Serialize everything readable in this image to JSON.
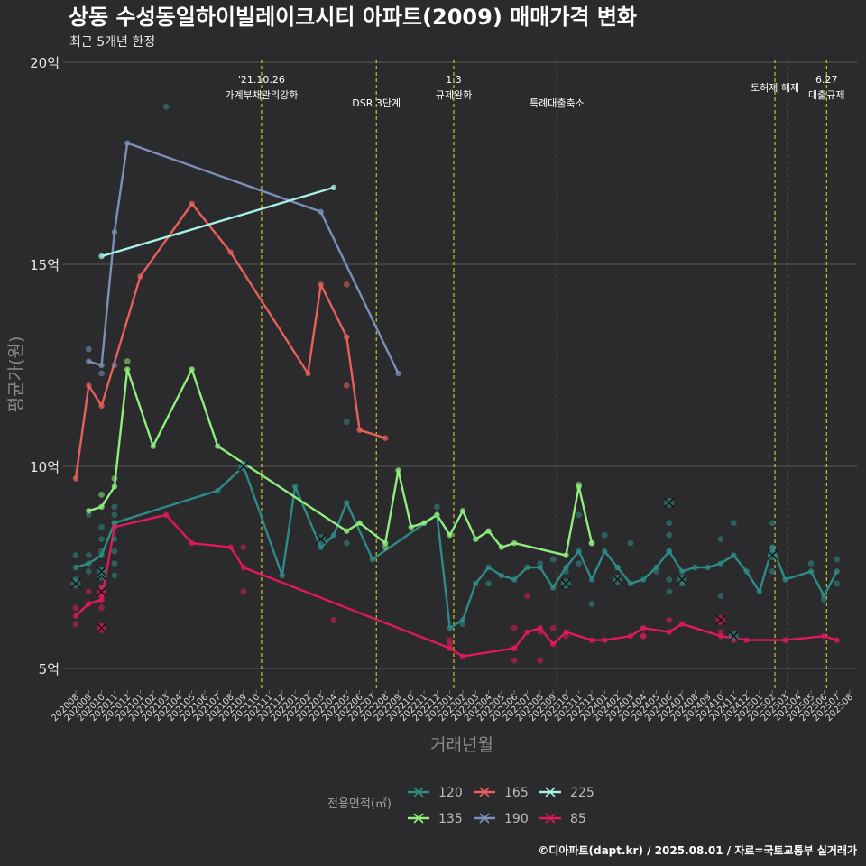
{
  "chart_data": {
    "type": "line",
    "title": "상동 수성동일하이빌레이크시티 아파트(2009) 매매가격 변화",
    "subtitle": "최근 5개년 한정",
    "xlabel": "거래년월",
    "ylabel": "평균가(원)",
    "caption": "©디아파트(dapt.kr) / 2025.08.01 / 자료=국토교통부 실거래가",
    "ylim": [
      4.3,
      20.1
    ],
    "yticks": [
      {
        "value": 5,
        "label": "5억"
      },
      {
        "value": 10,
        "label": "10억"
      },
      {
        "value": 15,
        "label": "15억"
      },
      {
        "value": 20,
        "label": "20억"
      }
    ],
    "x_categories": [
      "202008",
      "202009",
      "202010",
      "202011",
      "202012",
      "202101",
      "202102",
      "202103",
      "202104",
      "202105",
      "202106",
      "202107",
      "202108",
      "202109",
      "202110",
      "202111",
      "202112",
      "202201",
      "202202",
      "202203",
      "202204",
      "202205",
      "202206",
      "202207",
      "202208",
      "202209",
      "202210",
      "202211",
      "202212",
      "202301",
      "202302",
      "202303",
      "202304",
      "202305",
      "202306",
      "202307",
      "202308",
      "202309",
      "202310",
      "202311",
      "202312",
      "202401",
      "202402",
      "202403",
      "202404",
      "202405",
      "202406",
      "202407",
      "202408",
      "202409",
      "202410",
      "202411",
      "202412",
      "202501",
      "202502",
      "202503",
      "202504",
      "202505",
      "202506",
      "202507",
      "202508"
    ],
    "events": [
      {
        "x": 14.4,
        "lines": [
          "'21.10.26",
          "가계부채관리강화"
        ]
      },
      {
        "x": 23.3,
        "lines": [
          "DSR 3단계"
        ]
      },
      {
        "x": 29.3,
        "lines": [
          "1.3",
          "규제완화"
        ]
      },
      {
        "x": 37.3,
        "lines": [
          "특례대출축소"
        ]
      },
      {
        "x": 54.2,
        "lines": [
          "토허제 해제"
        ]
      },
      {
        "x": 55.2,
        "lines": []
      },
      {
        "x": 58.2,
        "lines": [
          "6.27",
          "대출규제"
        ]
      }
    ],
    "legend": {
      "title": "전용면적(㎡)",
      "position": "bottom"
    },
    "series": [
      {
        "name": "120",
        "color": "#2e8b86",
        "points": [
          [
            0,
            7.5
          ],
          [
            1,
            7.6
          ],
          [
            2,
            7.8
          ],
          [
            3,
            8.6
          ],
          [
            11,
            9.4
          ],
          [
            13,
            10.0
          ],
          [
            16,
            7.3
          ],
          [
            17,
            9.5
          ],
          [
            19,
            8.0
          ],
          [
            20,
            8.3
          ],
          [
            21,
            9.1
          ],
          [
            23,
            7.7
          ],
          [
            28,
            8.8
          ],
          [
            29,
            6.0
          ],
          [
            30,
            6.2
          ],
          [
            31,
            7.1
          ],
          [
            32,
            7.5
          ],
          [
            33,
            7.3
          ],
          [
            34,
            7.2
          ],
          [
            35,
            7.5
          ],
          [
            36,
            7.5
          ],
          [
            37,
            7.0
          ],
          [
            38,
            7.5
          ],
          [
            39,
            7.9
          ],
          [
            40,
            7.2
          ],
          [
            41,
            7.9
          ],
          [
            42,
            7.5
          ],
          [
            43,
            7.1
          ],
          [
            44,
            7.2
          ],
          [
            45,
            7.5
          ],
          [
            46,
            7.9
          ],
          [
            47,
            7.4
          ],
          [
            48,
            7.5
          ],
          [
            49,
            7.5
          ],
          [
            50,
            7.6
          ],
          [
            51,
            7.8
          ],
          [
            52,
            7.4
          ],
          [
            53,
            6.9
          ],
          [
            54,
            8.0
          ],
          [
            55,
            7.2
          ],
          [
            57,
            7.4
          ],
          [
            58,
            6.8
          ],
          [
            59,
            7.4
          ]
        ],
        "dots": [
          [
            0,
            7.8
          ],
          [
            0,
            7.2
          ],
          [
            1,
            8.8
          ],
          [
            1,
            7.4
          ],
          [
            1,
            7.8
          ],
          [
            2,
            8.5
          ],
          [
            2,
            7.9
          ],
          [
            2,
            7.4
          ],
          [
            2,
            7.0
          ],
          [
            2,
            8.2
          ],
          [
            3,
            9.0
          ],
          [
            3,
            8.8
          ],
          [
            3,
            8.6
          ],
          [
            3,
            8.2
          ],
          [
            3,
            7.9
          ],
          [
            3,
            7.6
          ],
          [
            3,
            7.3
          ],
          [
            7,
            18.9
          ],
          [
            21,
            8.1
          ],
          [
            21,
            11.1
          ],
          [
            28,
            9.0
          ],
          [
            30,
            6.1
          ],
          [
            31,
            8.2
          ],
          [
            32,
            7.1
          ],
          [
            36,
            7.6
          ],
          [
            37,
            7.7
          ],
          [
            38,
            7.4
          ],
          [
            39,
            8.8
          ],
          [
            39,
            7.6
          ],
          [
            40,
            6.6
          ],
          [
            41,
            8.3
          ],
          [
            42,
            7.5
          ],
          [
            43,
            8.1
          ],
          [
            45,
            7.4
          ],
          [
            46,
            8.6
          ],
          [
            46,
            8.3
          ],
          [
            46,
            7.9
          ],
          [
            46,
            7.2
          ],
          [
            46,
            6.9
          ],
          [
            47,
            7.1
          ],
          [
            50,
            8.2
          ],
          [
            50,
            6.8
          ],
          [
            51,
            8.6
          ],
          [
            54,
            8.6
          ],
          [
            54,
            7.4
          ],
          [
            57,
            7.6
          ],
          [
            58,
            6.7
          ],
          [
            59,
            7.7
          ],
          [
            59,
            7.1
          ]
        ]
      },
      {
        "name": "135",
        "color": "#90ee7e",
        "points": [
          [
            1,
            8.9
          ],
          [
            2,
            9.0
          ],
          [
            3,
            9.5
          ],
          [
            4,
            12.4
          ],
          [
            6,
            10.5
          ],
          [
            9,
            12.4
          ],
          [
            11,
            10.5
          ],
          [
            21,
            8.4
          ],
          [
            22,
            8.6
          ],
          [
            24,
            8.1
          ],
          [
            25,
            9.9
          ],
          [
            26,
            8.5
          ],
          [
            27,
            8.6
          ],
          [
            28,
            8.8
          ],
          [
            29,
            8.3
          ],
          [
            30,
            8.9
          ],
          [
            31,
            8.2
          ],
          [
            32,
            8.4
          ],
          [
            33,
            8.0
          ],
          [
            34,
            8.1
          ],
          [
            38,
            7.8
          ],
          [
            39,
            9.5
          ],
          [
            40,
            8.1
          ]
        ],
        "dots": [
          [
            2,
            9.3
          ],
          [
            3,
            9.7
          ],
          [
            4,
            12.6
          ],
          [
            24,
            8.0
          ],
          [
            39,
            9.55
          ],
          [
            40,
            8.1
          ]
        ]
      },
      {
        "name": "165",
        "color": "#e8605b",
        "points": [
          [
            0,
            9.7
          ],
          [
            1,
            12.0
          ],
          [
            2,
            11.5
          ],
          [
            5,
            14.7
          ],
          [
            9,
            16.5
          ],
          [
            12,
            15.3
          ],
          [
            18,
            12.3
          ],
          [
            19,
            14.5
          ],
          [
            21,
            13.2
          ],
          [
            22,
            10.9
          ],
          [
            24,
            10.7
          ]
        ],
        "dots": [
          [
            21,
            14.5
          ],
          [
            21,
            12.0
          ]
        ]
      },
      {
        "name": "190",
        "color": "#7b90b8",
        "points": [
          [
            1,
            12.6
          ],
          [
            2,
            12.5
          ],
          [
            3,
            15.8
          ],
          [
            4,
            18.0
          ],
          [
            19,
            16.3
          ],
          [
            25,
            12.3
          ]
        ],
        "dots": [
          [
            1,
            12.9
          ],
          [
            2,
            12.3
          ],
          [
            3,
            12.5
          ]
        ]
      },
      {
        "name": "225",
        "color": "#aaf0e8",
        "points": [
          [
            2,
            15.2
          ],
          [
            20,
            16.9
          ]
        ],
        "dots": []
      },
      {
        "name": "85",
        "color": "#e0195e",
        "points": [
          [
            0,
            6.3
          ],
          [
            1,
            6.6
          ],
          [
            2,
            6.7
          ],
          [
            3,
            8.5
          ],
          [
            7,
            8.8
          ],
          [
            9,
            8.1
          ],
          [
            12,
            8.0
          ],
          [
            13,
            7.5
          ],
          [
            29,
            5.5
          ],
          [
            30,
            5.3
          ],
          [
            34,
            5.5
          ],
          [
            35,
            5.9
          ],
          [
            36,
            6.0
          ],
          [
            37,
            5.6
          ],
          [
            38,
            5.9
          ],
          [
            40,
            5.7
          ],
          [
            41,
            5.7
          ],
          [
            43,
            5.8
          ],
          [
            44,
            6.0
          ],
          [
            46,
            5.9
          ],
          [
            47,
            6.1
          ],
          [
            50,
            5.8
          ],
          [
            52,
            5.7
          ],
          [
            55,
            5.7
          ],
          [
            58,
            5.8
          ],
          [
            59,
            5.7
          ]
        ],
        "dots": [
          [
            0,
            6.1
          ],
          [
            0,
            6.5
          ],
          [
            1,
            6.9
          ],
          [
            2,
            6.0
          ],
          [
            2,
            7.0
          ],
          [
            2,
            6.5
          ],
          [
            2,
            6.8
          ],
          [
            13,
            6.9
          ],
          [
            13,
            8.0
          ],
          [
            20,
            6.2
          ],
          [
            29,
            5.7
          ],
          [
            29,
            5.6
          ],
          [
            34,
            5.2
          ],
          [
            34,
            5.5
          ],
          [
            34,
            6.0
          ],
          [
            35,
            6.8
          ],
          [
            36,
            5.2
          ],
          [
            36,
            5.9
          ],
          [
            37,
            6.0
          ],
          [
            38,
            5.8
          ],
          [
            44,
            5.8
          ],
          [
            44,
            5.8
          ],
          [
            46,
            6.2
          ],
          [
            50,
            5.9
          ],
          [
            51,
            5.7
          ]
        ]
      }
    ],
    "crosses": [
      {
        "series": "120",
        "points": [
          [
            0,
            7.1
          ],
          [
            2,
            7.3
          ],
          [
            2,
            7.4
          ],
          [
            13,
            10.0
          ],
          [
            19,
            8.2
          ],
          [
            38,
            7.1
          ],
          [
            42,
            7.2
          ],
          [
            46,
            9.1
          ],
          [
            47,
            7.2
          ],
          [
            51,
            5.8
          ],
          [
            54,
            7.8
          ]
        ]
      },
      {
        "series": "85",
        "points": [
          [
            2,
            6.0
          ],
          [
            2,
            6.9
          ],
          [
            50,
            6.2
          ]
        ]
      }
    ]
  }
}
